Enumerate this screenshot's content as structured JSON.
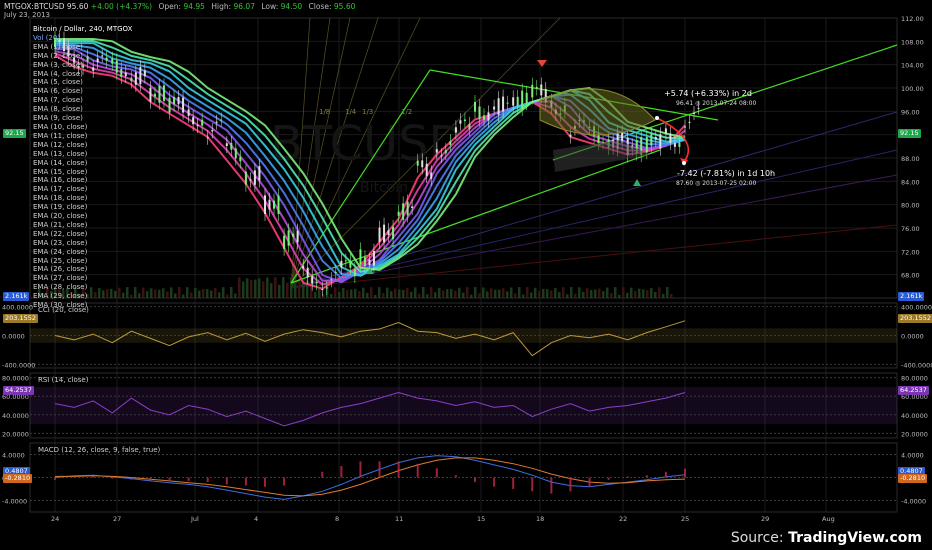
{
  "header": {
    "symbol": "MTGOX:BTCUSD",
    "last": "95.60",
    "change": "+4.00 (+4.37%)",
    "open_label": "Open:",
    "open": "94.95",
    "high_label": "High:",
    "high": "96.07",
    "low_label": "Low:",
    "low": "94.50",
    "close_label": "Close:",
    "close": "95.60",
    "date": "July 23, 2013"
  },
  "legend": {
    "title": "Bitcoin / Dollar, 240, MTGOX",
    "vol": "Vol (20)",
    "ema": [
      "EMA (1, close)",
      "EMA (2, close)",
      "EMA (3, close)",
      "EMA (4, close)",
      "EMA (5, close)",
      "EMA (6, close)",
      "EMA (7, close)",
      "EMA (8, close)",
      "EMA (9, close)",
      "EMA (10, close)",
      "EMA (11, close)",
      "EMA (12, close)",
      "EMA (13, close)",
      "EMA (14, close)",
      "EMA (15, close)",
      "EMA (16, close)",
      "EMA (17, close)",
      "EMA (18, close)",
      "EMA (19, close)",
      "EMA (20, close)",
      "EMA (21, close)",
      "EMA (22, close)",
      "EMA (23, close)",
      "EMA (24, close)",
      "EMA (25, close)",
      "EMA (26, close)",
      "EMA (27, close)",
      "EMA (28, close)",
      "EMA (29, close)",
      "EMA (30, close)"
    ]
  },
  "fan_labels": [
    "1/8",
    "1/4",
    "1/3",
    "1/2"
  ],
  "watermark": {
    "symbol": "BTCUSD",
    "name": "Bitcoin / Dollar"
  },
  "annotations": {
    "up": "+5.74 (+6.33%) in 2d",
    "up_sub": "96.41 ◎ 2013-07-24 08:00",
    "down": "-7.42 (-7.81%) in 1d 10h",
    "down_sub": "87.60 ◎ 2013-07-25 02:00"
  },
  "price_tags": {
    "left": "92.15",
    "right": "92.15",
    "vol_left": "2.161k",
    "vol_right": "2.161k"
  },
  "source": {
    "prefix": "Source:",
    "brand": "TradingView.com"
  },
  "colors": {
    "up": "#35c435",
    "grid": "#1a1a1a",
    "trend": "#44dd22",
    "cci": "#b89a3c",
    "rsi": "#8a3fc7",
    "macd": "#3b6fe0",
    "signal": "#e07a2b"
  },
  "chart_data": [
    {
      "type": "candlestick",
      "panel": "price",
      "title": "Bitcoin / Dollar, 240, MTGOX",
      "x_ticks": [
        "24",
        "27",
        "Jul",
        "4",
        "8",
        "11",
        "15",
        "18",
        "22",
        "25",
        "29",
        "Aug"
      ],
      "y_ticks": [
        "112.00",
        "108.00",
        "104.00",
        "100.00",
        "96.00",
        "92.00",
        "88.00",
        "84.00",
        "80.00",
        "76.00",
        "72.00",
        "68.00"
      ],
      "ylim": [
        64,
        112
      ],
      "series": [
        {
          "name": "EMA ribbon (1–30)",
          "x": [
            0,
            2,
            4,
            6,
            8,
            10,
            12,
            14,
            16,
            18,
            20,
            22,
            24,
            26,
            28,
            30,
            32,
            34,
            36,
            38,
            40,
            42,
            44,
            46,
            48,
            50,
            52,
            54,
            56,
            58,
            60,
            62,
            64,
            66
          ],
          "values": [
            107,
            105,
            104,
            103.5,
            102,
            99,
            97,
            95,
            93,
            89,
            85,
            80,
            74,
            68,
            67,
            69,
            71,
            75,
            79,
            86,
            90,
            93,
            96,
            97,
            98,
            99,
            97,
            93,
            92,
            91,
            90,
            90.5,
            91.5,
            95
          ]
        }
      ],
      "annotations": {
        "up": "+5.74 (+6.33%) in 2d",
        "down": "-7.42 (-7.81%) in 1d 10h"
      }
    },
    {
      "type": "line",
      "panel": "cci",
      "name": "CCI (20, close)",
      "y_ticks": [
        "400.0000",
        "0.0000",
        "-400.0000"
      ],
      "last": "203.1552",
      "ylim": [
        -450,
        450
      ],
      "values": [
        0,
        -60,
        20,
        -100,
        60,
        -40,
        -140,
        -20,
        40,
        -60,
        30,
        -80,
        20,
        80,
        40,
        -20,
        60,
        90,
        180,
        60,
        40,
        -40,
        20,
        -60,
        40,
        -280,
        -100,
        0,
        -30,
        20,
        -60,
        40,
        120,
        203
      ]
    },
    {
      "type": "line",
      "panel": "rsi",
      "name": "RSI (14, close)",
      "y_ticks": [
        "80.0000",
        "60.0000",
        "40.0000",
        "20.0000"
      ],
      "last": "64.2537",
      "ylim": [
        15,
        85
      ],
      "values": [
        52,
        48,
        55,
        42,
        58,
        45,
        40,
        50,
        46,
        38,
        44,
        36,
        28,
        34,
        42,
        48,
        52,
        58,
        64,
        58,
        55,
        50,
        54,
        48,
        50,
        38,
        46,
        52,
        44,
        48,
        50,
        54,
        58,
        64
      ]
    },
    {
      "type": "line",
      "panel": "macd",
      "name": "MACD (12, 26, close, 9, false, true)",
      "y_ticks": [
        "4.0000",
        "0.0000",
        "-4.0000"
      ],
      "last": [
        "0.4807",
        "-0.2810"
      ],
      "ylim": [
        -6,
        6
      ],
      "series": [
        {
          "name": "MACD",
          "values": [
            0,
            0.3,
            0.4,
            0.1,
            -0.2,
            -0.6,
            -0.9,
            -1.2,
            -1.6,
            -2.2,
            -2.8,
            -3.4,
            -3.8,
            -3.2,
            -2.4,
            -1.2,
            0.2,
            1.4,
            2.6,
            3.4,
            3.8,
            3.6,
            3.0,
            2.2,
            1.4,
            0.4,
            -0.8,
            -1.4,
            -1.6,
            -1.2,
            -0.8,
            -0.4,
            0.1,
            0.48
          ]
        },
        {
          "name": "Signal",
          "values": [
            0.2,
            0.2,
            0.3,
            0.2,
            0,
            -0.3,
            -0.6,
            -0.9,
            -1.2,
            -1.6,
            -2.1,
            -2.6,
            -3.1,
            -3.2,
            -2.9,
            -2.2,
            -1.2,
            0,
            1.2,
            2.2,
            3.0,
            3.4,
            3.4,
            3.0,
            2.4,
            1.6,
            0.6,
            -0.2,
            -0.8,
            -1.0,
            -0.9,
            -0.6,
            -0.4,
            -0.28
          ]
        }
      ]
    }
  ]
}
